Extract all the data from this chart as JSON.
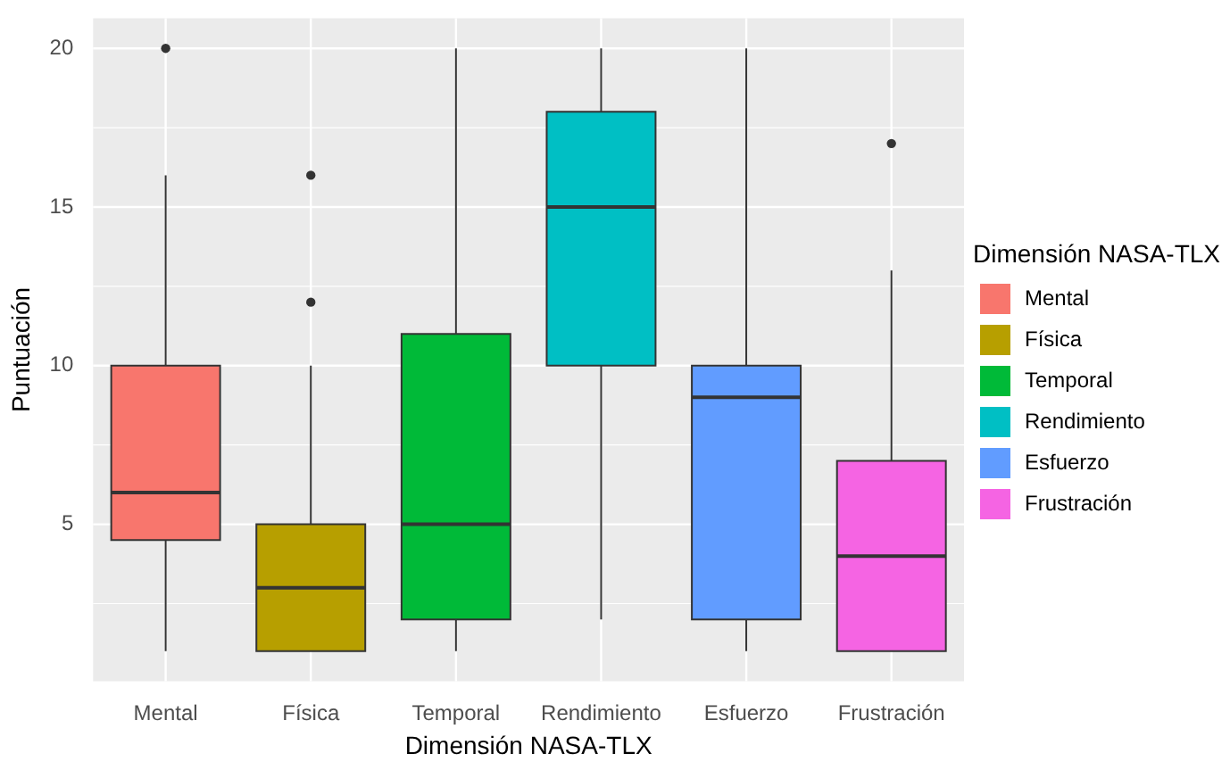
{
  "chart_data": {
    "type": "box",
    "xlabel": "Dimensión NASA-TLX",
    "ylabel": "Puntuación",
    "legend_title": "Dimensión NASA-TLX",
    "legend": "right",
    "grid": true,
    "categories": [
      "Mental",
      "Física",
      "Temporal",
      "Rendimiento",
      "Esfuerzo",
      "Frustración"
    ],
    "ylim": [
      0.05,
      20.95
    ],
    "yticks": [
      {
        "value": 2.5,
        "label": null
      },
      5,
      {
        "value": 7.5,
        "label": null
      },
      10,
      {
        "value": 12.5,
        "label": null
      },
      15,
      {
        "value": 17.5,
        "label": null
      },
      20
    ],
    "series": [
      {
        "name": "Mental",
        "color": "#f8766d",
        "boxes": [
          {
            "low": 1,
            "q1": 4.5,
            "median": 6,
            "q3": 10,
            "high": 16,
            "outliers": [
              20
            ]
          },
          null,
          null,
          null,
          null,
          null
        ]
      },
      {
        "name": "Física",
        "color": "#b79f00",
        "boxes": [
          null,
          {
            "low": 1,
            "q1": 1,
            "median": 3,
            "q3": 5,
            "high": 10,
            "outliers": [
              12,
              16
            ]
          },
          null,
          null,
          null,
          null
        ]
      },
      {
        "name": "Temporal",
        "color": "#00ba38",
        "boxes": [
          null,
          null,
          {
            "low": 1,
            "q1": 2,
            "median": 5,
            "q3": 11,
            "high": 20
          },
          null,
          null,
          null
        ]
      },
      {
        "name": "Rendimiento",
        "color": "#00bfc4",
        "boxes": [
          null,
          null,
          null,
          {
            "low": 2,
            "q1": 10,
            "median": 15,
            "q3": 18,
            "high": 20
          },
          null,
          null
        ]
      },
      {
        "name": "Esfuerzo",
        "color": "#619cff",
        "boxes": [
          null,
          null,
          null,
          null,
          {
            "low": 1,
            "q1": 2,
            "median": 9,
            "q3": 10,
            "high": 20
          },
          null
        ]
      },
      {
        "name": "Frustración",
        "color": "#f564e3",
        "boxes": [
          null,
          null,
          null,
          null,
          null,
          {
            "low": 1,
            "q1": 1,
            "median": 4,
            "q3": 7,
            "high": 13,
            "outliers": [
              17
            ]
          }
        ]
      }
    ]
  }
}
